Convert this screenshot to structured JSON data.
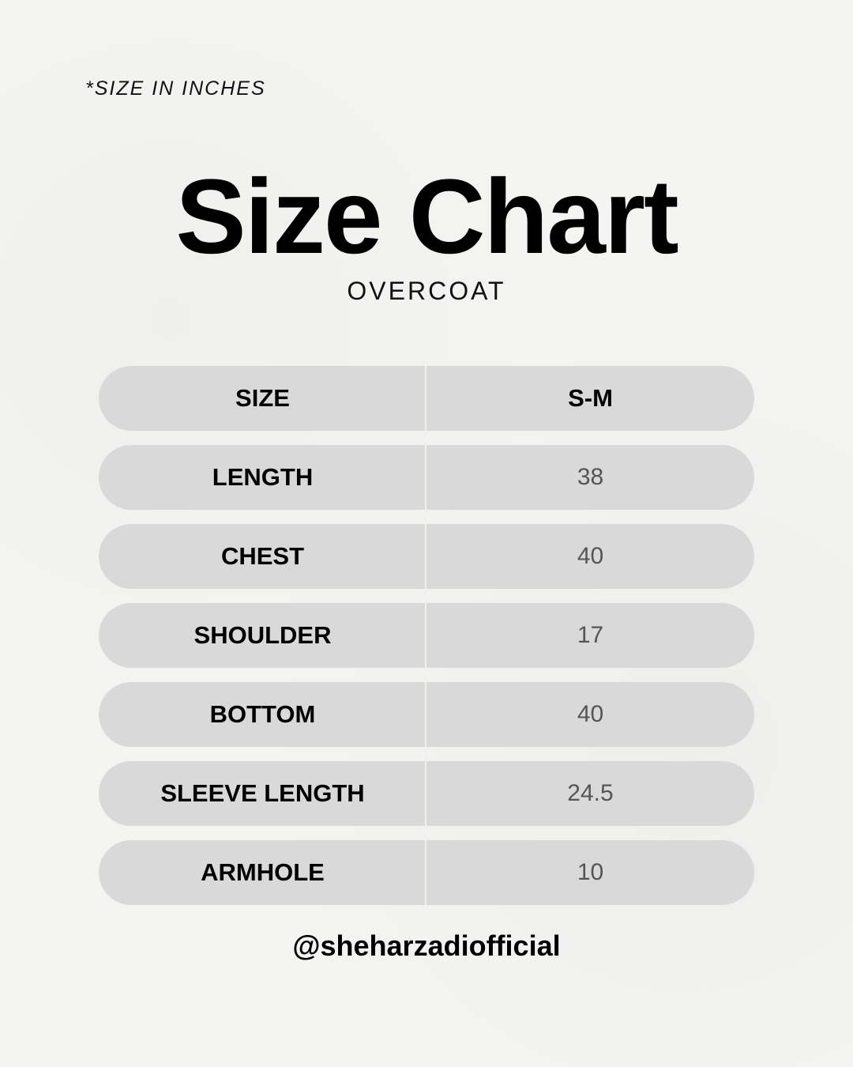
{
  "note": "*SIZE IN INCHES",
  "title": "Size Chart",
  "subtitle": "OVERCOAT",
  "table": {
    "header": {
      "label": "SIZE",
      "value": "S-M"
    },
    "rows": [
      {
        "label": "LENGTH",
        "value": "38"
      },
      {
        "label": "CHEST",
        "value": "40"
      },
      {
        "label": "SHOULDER",
        "value": "17"
      },
      {
        "label": "BOTTOM",
        "value": "40"
      },
      {
        "label": "SLEEVE LENGTH",
        "value": "24.5"
      },
      {
        "label": "ARMHOLE",
        "value": "10"
      }
    ]
  },
  "handle": "@sheharzadiofficial",
  "colors": {
    "background": "#f4f4f2",
    "row": "#d9d9d9",
    "text": "#000000",
    "value_text": "#555555"
  }
}
